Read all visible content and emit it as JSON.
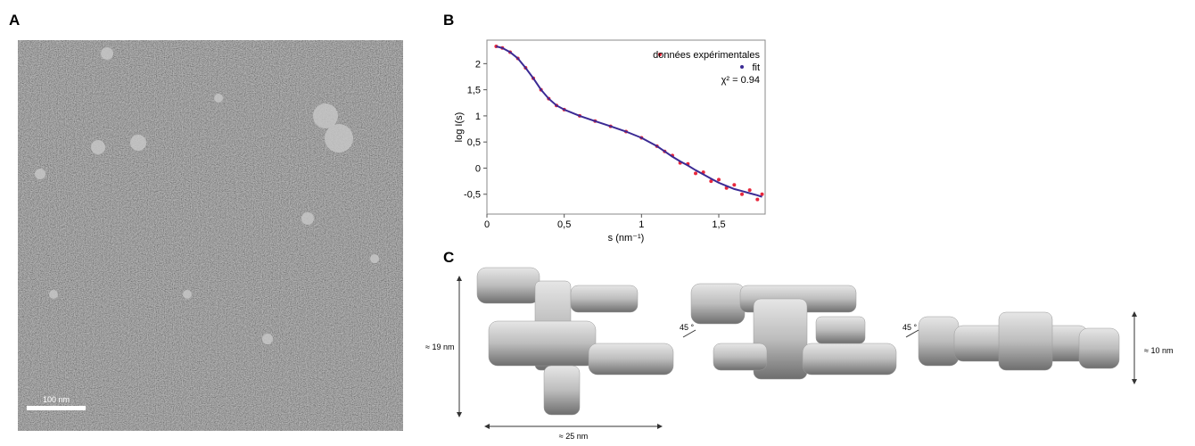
{
  "panel_labels": [
    "A",
    "B",
    "C"
  ],
  "scale_bar": "100 nm",
  "chart_data": {
    "type": "line",
    "xlabel": "s (nm⁻¹)",
    "ylabel": "log I(s)",
    "x": [
      0.06,
      0.1,
      0.15,
      0.2,
      0.25,
      0.3,
      0.35,
      0.4,
      0.45,
      0.5,
      0.6,
      0.7,
      0.8,
      0.9,
      1.0,
      1.1,
      1.15,
      1.2,
      1.25,
      1.3,
      1.35,
      1.4,
      1.45,
      1.5,
      1.55,
      1.6,
      1.65,
      1.7,
      1.75,
      1.78
    ],
    "series": [
      {
        "name": "données expérimentales",
        "color": "#e8283c",
        "values": [
          2.33,
          2.3,
          2.22,
          2.1,
          1.92,
          1.72,
          1.5,
          1.33,
          1.2,
          1.12,
          1.0,
          0.9,
          0.8,
          0.7,
          0.58,
          0.42,
          0.32,
          0.24,
          0.1,
          0.08,
          -0.1,
          -0.08,
          -0.25,
          -0.22,
          -0.38,
          -0.32,
          -0.5,
          -0.42,
          -0.6,
          -0.5
        ]
      },
      {
        "name": "fit",
        "color": "#3b2a94",
        "values": [
          2.33,
          2.3,
          2.22,
          2.1,
          1.92,
          1.72,
          1.5,
          1.33,
          1.2,
          1.12,
          1.0,
          0.9,
          0.8,
          0.7,
          0.58,
          0.42,
          0.32,
          0.22,
          0.13,
          0.05,
          -0.04,
          -0.12,
          -0.2,
          -0.28,
          -0.34,
          -0.4,
          -0.44,
          -0.48,
          -0.52,
          -0.55
        ]
      }
    ],
    "annotation": "χ² = 0.94",
    "xlim": [
      0,
      1.8
    ],
    "ylim": [
      -0.88,
      2.45
    ],
    "xticks": [
      0,
      {
        "value": 0.5,
        "label": "0,5"
      },
      1,
      {
        "value": 1.5,
        "label": "1,5"
      }
    ],
    "yticks": [
      {
        "value": -0.5,
        "label": "-0,5"
      },
      0,
      {
        "value": 0.5,
        "label": "0,5"
      },
      1,
      {
        "value": 1.5,
        "label": "1,5"
      },
      2
    ]
  },
  "dimensions": [
    "≈ 19 nm",
    "≈ 25 nm",
    "≈ 10 nm"
  ],
  "rotations": [
    "45 °",
    "45 °"
  ]
}
